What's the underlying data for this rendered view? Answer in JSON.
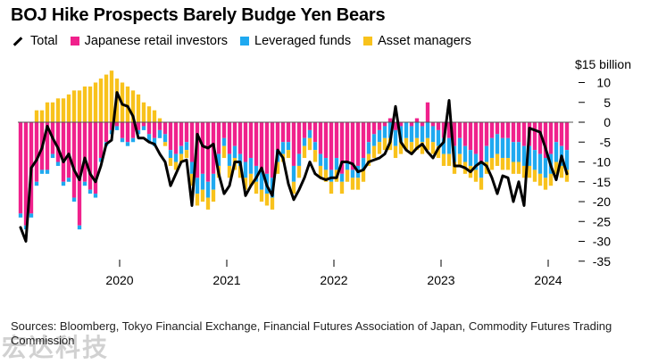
{
  "chart_data": {
    "type": "bar",
    "title": "BOJ Hike Prospects Barely Budge Yen Bears",
    "unit_label": "$15 billion",
    "ylim": [
      -35,
      15
    ],
    "y_ticks": [
      10,
      5,
      0,
      -5,
      -10,
      -15,
      -20,
      -25,
      -30,
      -35
    ],
    "y_tick_labels": [
      "10",
      "5",
      "0",
      "-5",
      "-10",
      "-15",
      "-20",
      "-25",
      "-30",
      "-35"
    ],
    "x_tick_labels": [
      "2020",
      "2021",
      "2022",
      "2023",
      "2024"
    ],
    "x_ticks": [
      19,
      39,
      59,
      79,
      99
    ],
    "n_periods": 103,
    "legend_position": "top-left",
    "grid": false,
    "colors": {
      "Japanese retail investors": "#f0218c",
      "Leveraged funds": "#1fa9f0",
      "Asset managers": "#f8c21c",
      "Total": "#000000"
    },
    "series": [
      {
        "name": "Japanese retail investors",
        "values": [
          -23,
          -26,
          -23,
          -15,
          -12,
          -12,
          -8,
          -10,
          -15,
          -14,
          -19,
          -26,
          -15,
          -17,
          -18,
          -9,
          -5,
          -2,
          -1,
          -4,
          -5,
          -4,
          -2,
          -1,
          -3,
          -4,
          -2,
          -3,
          -7,
          -8,
          -6,
          -5,
          -10,
          -14,
          -13,
          -15,
          -13,
          -8,
          -4,
          -8,
          -6,
          -8,
          -10,
          -9,
          -11,
          -12,
          -13,
          -14,
          -7,
          -5,
          -5,
          -11,
          -8,
          -4,
          -2,
          -5,
          -8,
          -9,
          -12,
          -9,
          -13,
          -10,
          -12,
          -11,
          -9,
          -5,
          -3,
          -2,
          -1,
          1,
          -2,
          -1,
          0,
          -1,
          1,
          -1,
          5,
          -1,
          -2,
          -4,
          -4,
          -6,
          -4,
          -6,
          -7,
          -8,
          -10,
          -6,
          -4,
          -3,
          -4,
          -4,
          -5,
          -5,
          -6,
          -6,
          -7,
          -8,
          -9,
          -8,
          -5,
          -6,
          -7
        ]
      },
      {
        "name": "Leveraged funds",
        "values": [
          -1,
          -1,
          -1,
          -1,
          -1,
          -1,
          -1,
          -1,
          -1,
          -1,
          -1,
          -1,
          -1,
          -1,
          -1,
          -1,
          -1,
          -1,
          -1,
          -1,
          -1,
          -1,
          -1,
          -1,
          -2,
          -2,
          -2,
          -2,
          -2,
          -2,
          -2,
          -2,
          -3,
          -4,
          -4,
          -4,
          -4,
          -3,
          -2,
          -3,
          -3,
          -3,
          -4,
          -4,
          -4,
          -5,
          -5,
          -5,
          -3,
          -3,
          -2,
          -4,
          -3,
          -2,
          -2,
          -2,
          -3,
          -3,
          -3,
          -3,
          -2,
          -2,
          -2,
          -3,
          -3,
          -3,
          -3,
          -3,
          -3,
          -4,
          -4,
          -4,
          -4,
          -4,
          -4,
          -4,
          -4,
          -4,
          -4,
          -4,
          -4,
          -4,
          -4,
          -4,
          -4,
          -4,
          -4,
          -4,
          -5,
          -5,
          -5,
          -5,
          -5,
          -5,
          -5,
          -5,
          -5,
          -5,
          -5,
          -5,
          -5,
          -5,
          -5
        ]
      },
      {
        "name": "Asset managers",
        "values": [
          0,
          0,
          0,
          3,
          3,
          5,
          5,
          6,
          6,
          7,
          8,
          8,
          9,
          9,
          10,
          11,
          12,
          13,
          11,
          10,
          9,
          8,
          7,
          5,
          4,
          3,
          1,
          -1,
          -2,
          -2,
          -2,
          -2,
          -3,
          -3,
          -3,
          -3,
          -3,
          -3,
          -3,
          -3,
          -3,
          -3,
          -3,
          -3,
          -3,
          -3,
          -3,
          -3,
          -3,
          -2,
          -2,
          -3,
          -3,
          -3,
          -3,
          -3,
          -3,
          -3,
          -3,
          -3,
          -3,
          -3,
          -3,
          -3,
          -3,
          -3,
          -3,
          -3,
          -3,
          -3,
          -3,
          -3,
          -3,
          -3,
          -3,
          -3,
          -3,
          -3,
          -3,
          -3,
          -3,
          -3,
          -3,
          -3,
          -3,
          -3,
          -3,
          -3,
          -3,
          -3,
          -3,
          -3,
          -3,
          -3,
          -3,
          -3,
          -3,
          -3,
          -3,
          -3,
          -3,
          -3,
          -3
        ]
      },
      {
        "name": "Total",
        "values": [
          -26.5,
          -30,
          -11.5,
          -9.5,
          -6.5,
          -1,
          -4,
          -6.5,
          -10,
          -8,
          -12,
          -14.5,
          -9,
          -13,
          -15,
          -11,
          -5.5,
          -4.5,
          7.5,
          4.5,
          4,
          1.5,
          -4,
          -4,
          -5,
          -5.5,
          -8,
          -10,
          -16,
          -13,
          -10,
          -9.5,
          -21,
          -3,
          -6,
          -6.5,
          -5.5,
          -13,
          -18,
          -16,
          -10,
          -10,
          -18.5,
          -16,
          -14,
          -11.5,
          -16,
          -18.5,
          -7,
          -9,
          -15.5,
          -19.5,
          -17,
          -14,
          -10,
          -13,
          -14,
          -14.5,
          -14,
          -14,
          -10,
          -10,
          -10.5,
          -12.5,
          -12,
          -10,
          -9.5,
          -9,
          -8,
          -5,
          4,
          -5,
          -7,
          -8,
          -6.5,
          -5.5,
          -7.5,
          -9,
          -6.5,
          -5,
          5.5,
          -11,
          -11,
          -11.5,
          -12.5,
          -11,
          -10,
          -11,
          -14,
          -18,
          -13.5,
          -14,
          -20,
          -15,
          -21,
          -1.5,
          -2,
          -2.5,
          -6.5,
          -11,
          -14.5,
          -8.5,
          -13
        ]
      }
    ]
  },
  "legend": {
    "total": "Total",
    "retail": "Japanese retail investors",
    "leveraged": "Leveraged funds",
    "asset": "Asset managers"
  },
  "source": "Sources: Bloomberg, Tokyo Financial Exchange, Financial Futures Association of Japan, Commodity Futures Trading Commission",
  "watermark": "宏达科技"
}
